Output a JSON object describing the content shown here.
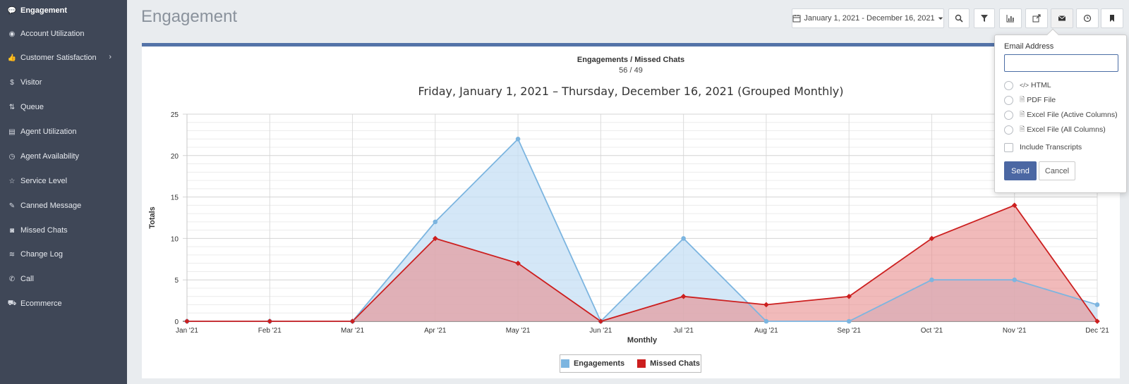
{
  "page": {
    "title": "Engagement"
  },
  "sidebar": {
    "items": [
      {
        "label": "Engagement",
        "icon": "comment-icon",
        "glyph": "💬",
        "active": true
      },
      {
        "label": "Account Utilization",
        "icon": "dashboard-icon",
        "glyph": "◉"
      },
      {
        "label": "Customer Satisfaction",
        "icon": "thumbs-up-icon",
        "glyph": "👍",
        "has_chevron": true
      },
      {
        "label": "Visitor",
        "icon": "dollar-icon",
        "glyph": "$"
      },
      {
        "label": "Queue",
        "icon": "sort-icon",
        "glyph": "⇅"
      },
      {
        "label": "Agent Utilization",
        "icon": "list-card-icon",
        "glyph": "▤"
      },
      {
        "label": "Agent Availability",
        "icon": "clock-icon",
        "glyph": "◷"
      },
      {
        "label": "Service Level",
        "icon": "star-icon",
        "glyph": "☆"
      },
      {
        "label": "Canned Message",
        "icon": "edit-icon",
        "glyph": "✎"
      },
      {
        "label": "Missed Chats",
        "icon": "camera-icon",
        "glyph": "◙"
      },
      {
        "label": "Change Log",
        "icon": "database-icon",
        "glyph": "≋"
      },
      {
        "label": "Call",
        "icon": "phone-icon",
        "glyph": "✆"
      },
      {
        "label": "Ecommerce",
        "icon": "cart-icon",
        "glyph": "⛟"
      }
    ],
    "chevron": "›"
  },
  "toolbar": {
    "date_range": "January 1, 2021 - December 16, 2021",
    "buttons": [
      "search-icon",
      "filter-icon",
      "bar-chart-icon",
      "share-icon",
      "envelope-icon",
      "clock-icon",
      "bookmark-icon"
    ]
  },
  "summary": {
    "title": "Engagements / Missed Chats",
    "value": "56 / 49"
  },
  "chart_data": {
    "type": "area",
    "title": "Friday, January 1, 2021 – Thursday, December 16, 2021 (Grouped Monthly)",
    "xlabel": "Monthly",
    "ylabel": "Totals",
    "categories": [
      "Jan '21",
      "Feb '21",
      "Mar '21",
      "Apr '21",
      "May '21",
      "Jun '21",
      "Jul '21",
      "Aug '21",
      "Sep '21",
      "Oct '21",
      "Nov '21",
      "Dec '21"
    ],
    "ylim": [
      0,
      25
    ],
    "yticks": [
      0,
      5,
      10,
      15,
      20,
      25
    ],
    "grid": true,
    "series": [
      {
        "name": "Engagements",
        "values": [
          0,
          0,
          0,
          12,
          22,
          0,
          10,
          0,
          0,
          5,
          5,
          2
        ],
        "color": "#7cb5e0",
        "fill": "#c6dff4"
      },
      {
        "name": "Missed Chats",
        "values": [
          0,
          0,
          0,
          10,
          7,
          0,
          3,
          2,
          3,
          10,
          14,
          0
        ],
        "color": "#cc1f1f",
        "fill": "#e88c8c"
      }
    ],
    "legend": "bottom-center"
  },
  "email_popover": {
    "label": "Email Address",
    "placeholder": "",
    "options": [
      {
        "label": "HTML",
        "icon": "</>"
      },
      {
        "label": "PDF File",
        "icon": "🗎"
      },
      {
        "label": "Excel File (Active Columns)",
        "icon": "🗎"
      },
      {
        "label": "Excel File (All Columns)",
        "icon": "🗎"
      }
    ],
    "include_transcripts": "Include Transcripts",
    "send": "Send",
    "cancel": "Cancel"
  },
  "colors": {
    "sidebar": "#3f4757",
    "accent": "#4b67a3",
    "panel_border": "#5473a8"
  }
}
